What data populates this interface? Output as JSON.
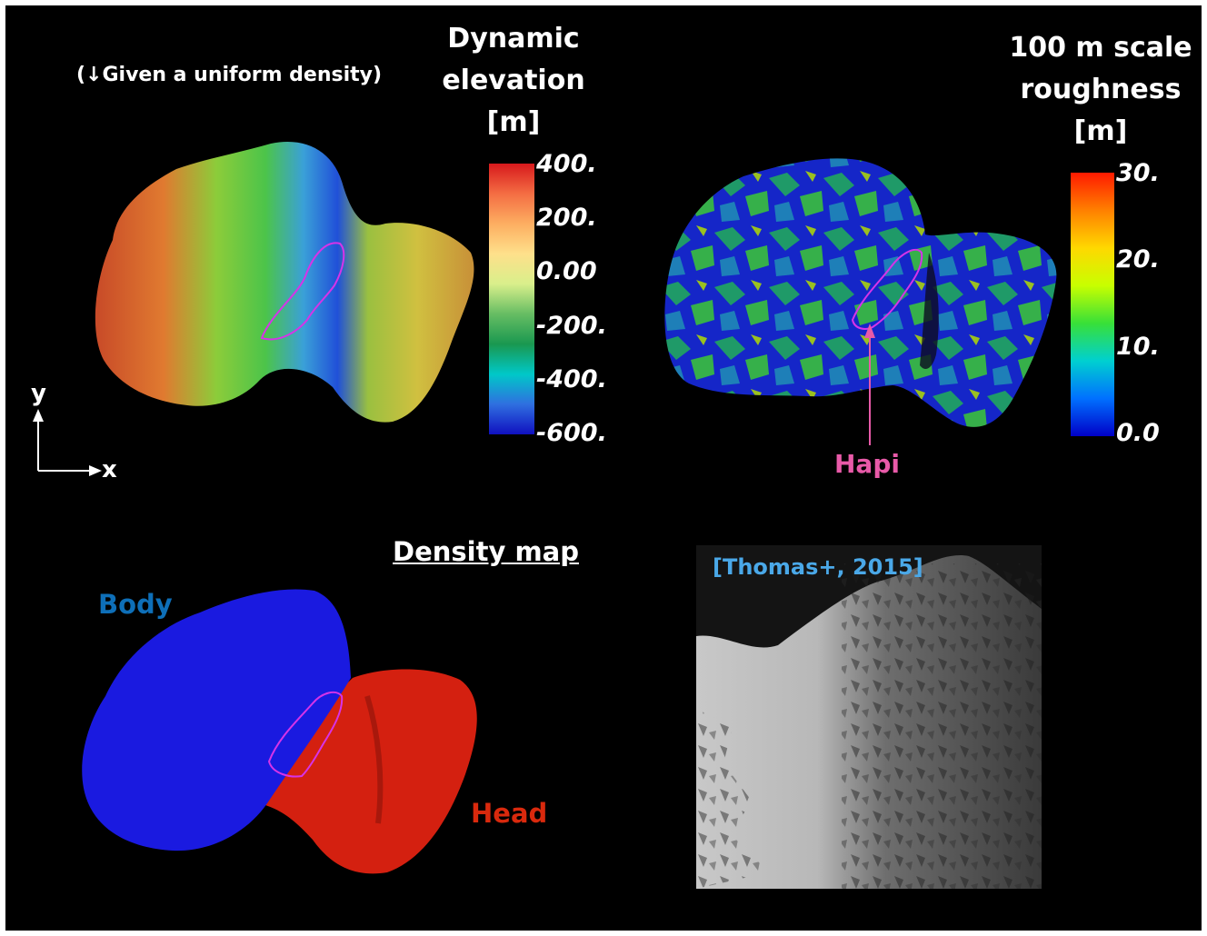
{
  "panel_elevation": {
    "subtitle": "(↓Given a uniform density)",
    "title_lines": [
      "Dynamic",
      "elevation",
      "[m]"
    ],
    "ticks": [
      "400.",
      "200.",
      "0.00",
      "-200.",
      "-400.",
      "-600."
    ],
    "colormap": [
      "#d7191c",
      "#f46d43",
      "#fdae61",
      "#fee08b",
      "#d9ef8b",
      "#66bd63",
      "#1a9850",
      "#00c8c8",
      "#2f6fe0",
      "#1010c0"
    ]
  },
  "panel_roughness": {
    "title_lines": [
      "100 m scale",
      "roughness",
      "[m]"
    ],
    "ticks": [
      "30.",
      "20.",
      "10.",
      "0.0"
    ],
    "annotation": "Hapi",
    "colormap": [
      "#ff1a00",
      "#ff8000",
      "#ffd800",
      "#c8ff00",
      "#38e038",
      "#00d0d0",
      "#0070ff",
      "#0000c8"
    ]
  },
  "axes_indicator": {
    "y_label": "y",
    "x_label": "x"
  },
  "panel_density": {
    "title": "Density map",
    "body_label": "Body",
    "head_label": "Head",
    "colors": {
      "body": "#1a1ae0",
      "head": "#d42010",
      "body_text": "#0e6fb8",
      "head_text": "#d9290d"
    }
  },
  "panel_photo": {
    "citation": "[Thomas+, 2015]",
    "citation_color": "#4aa8e8"
  },
  "colors": {
    "outline": "#d633e8",
    "hapi": "#e85aa8"
  }
}
